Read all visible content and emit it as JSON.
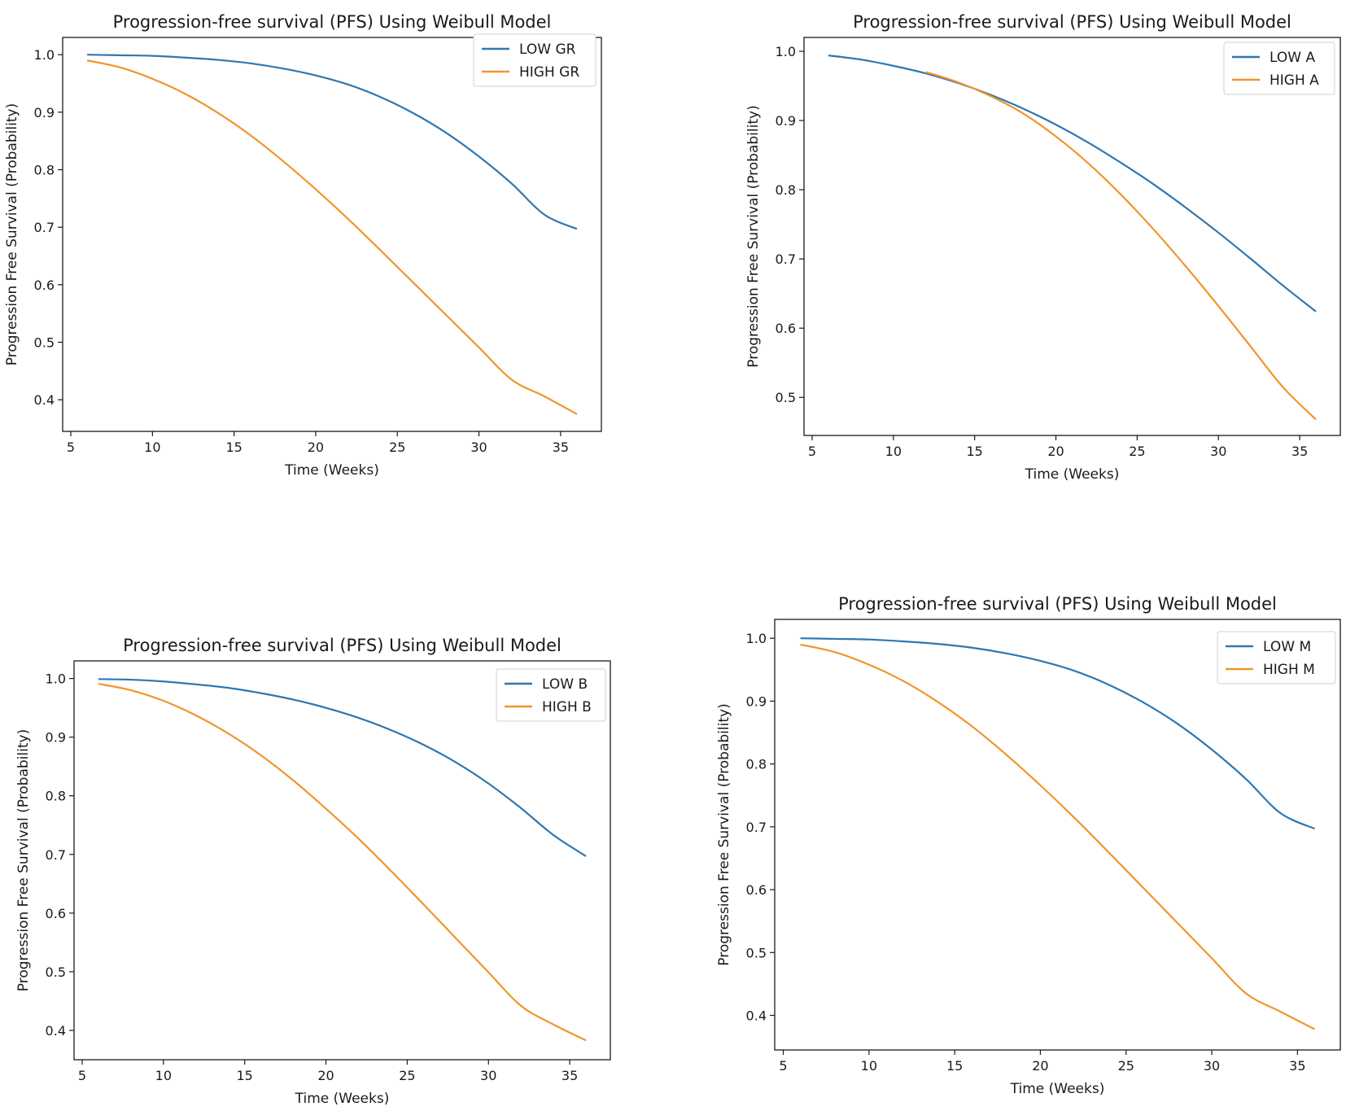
{
  "colors": {
    "low": "#2f77b0",
    "high": "#f0952c",
    "axis": "#1a1a1a"
  },
  "chart_data": [
    {
      "type": "line",
      "title": "Progression-free survival (PFS) Using Weibull Model",
      "xlabel": "Time (Weeks)",
      "ylabel": "Progression Free Survival (Probability)",
      "xlim": [
        4.5,
        37.5
      ],
      "ylim": [
        0.345,
        1.03
      ],
      "xticks": [
        5,
        10,
        15,
        20,
        25,
        30,
        35
      ],
      "yticks": [
        0.4,
        0.5,
        0.6,
        0.7,
        0.8,
        0.9,
        1.0
      ],
      "legend_position": "top-right",
      "series": [
        {
          "name": "LOW GR",
          "color": "#2f77b0",
          "x": [
            6,
            8,
            10,
            12,
            14,
            16,
            18,
            20,
            22,
            24,
            26,
            28,
            30,
            32,
            34,
            36
          ],
          "y": [
            1.0,
            0.999,
            0.998,
            0.995,
            0.991,
            0.985,
            0.976,
            0.964,
            0.948,
            0.926,
            0.898,
            0.864,
            0.823,
            0.776,
            0.722,
            0.697
          ]
        },
        {
          "name": "HIGH GR",
          "color": "#f0952c",
          "x": [
            6,
            8,
            10,
            12,
            14,
            16,
            18,
            20,
            22,
            24,
            26,
            28,
            30,
            32,
            34,
            36
          ],
          "y": [
            0.99,
            0.978,
            0.958,
            0.932,
            0.899,
            0.86,
            0.815,
            0.766,
            0.714,
            0.659,
            0.603,
            0.547,
            0.491,
            0.435,
            0.406,
            0.375
          ]
        }
      ]
    },
    {
      "type": "line",
      "title": "Progression-free survival (PFS) Using Weibull Model",
      "xlabel": "Time (Weeks)",
      "ylabel": "Progression Free Survival (Probability)",
      "xlim": [
        4.5,
        37.5
      ],
      "ylim": [
        0.445,
        1.02
      ],
      "xticks": [
        5,
        10,
        15,
        20,
        25,
        30,
        35
      ],
      "yticks": [
        0.5,
        0.6,
        0.7,
        0.8,
        0.9,
        1.0
      ],
      "legend_position": "top-right",
      "series": [
        {
          "name": "LOW A",
          "color": "#2f77b0",
          "x": [
            6,
            8,
            10,
            12,
            14,
            16,
            18,
            20,
            22,
            24,
            26,
            28,
            30,
            32,
            34,
            36
          ],
          "y": [
            0.994,
            0.988,
            0.979,
            0.968,
            0.954,
            0.937,
            0.917,
            0.894,
            0.868,
            0.839,
            0.808,
            0.774,
            0.738,
            0.7,
            0.661,
            0.624
          ]
        },
        {
          "name": "HIGH A",
          "color": "#f0952c",
          "x": [
            12,
            14,
            16,
            18,
            20,
            22,
            24,
            26,
            28,
            30,
            32,
            34,
            36
          ],
          "y": [
            0.97,
            0.955,
            0.935,
            0.91,
            0.877,
            0.838,
            0.793,
            0.743,
            0.689,
            0.632,
            0.573,
            0.514,
            0.468
          ]
        }
      ]
    },
    {
      "type": "line",
      "title": "Progression-free survival (PFS) Using Weibull Model",
      "xlabel": "Time (Weeks)",
      "ylabel": "Progression Free Survival (Probability)",
      "xlim": [
        4.5,
        37.5
      ],
      "ylim": [
        0.35,
        1.03
      ],
      "xticks": [
        5,
        10,
        15,
        20,
        25,
        30,
        35
      ],
      "yticks": [
        0.4,
        0.5,
        0.6,
        0.7,
        0.8,
        0.9,
        1.0
      ],
      "legend_position": "top-right",
      "series": [
        {
          "name": "LOW B",
          "color": "#2f77b0",
          "x": [
            6,
            8,
            10,
            12,
            14,
            16,
            18,
            20,
            22,
            24,
            26,
            28,
            30,
            32,
            34,
            36
          ],
          "y": [
            0.999,
            0.998,
            0.995,
            0.99,
            0.984,
            0.975,
            0.964,
            0.95,
            0.933,
            0.912,
            0.887,
            0.857,
            0.821,
            0.779,
            0.733,
            0.697
          ]
        },
        {
          "name": "HIGH B",
          "color": "#f0952c",
          "x": [
            6,
            8,
            10,
            12,
            14,
            16,
            18,
            20,
            22,
            24,
            26,
            28,
            30,
            32,
            34,
            36
          ],
          "y": [
            0.991,
            0.98,
            0.962,
            0.937,
            0.906,
            0.869,
            0.826,
            0.778,
            0.727,
            0.672,
            0.615,
            0.557,
            0.499,
            0.442,
            0.41,
            0.383
          ]
        }
      ]
    },
    {
      "type": "line",
      "title": "Progression-free survival (PFS) Using Weibull Model",
      "xlabel": "Time (Weeks)",
      "ylabel": "Progression Free Survival (Probability)",
      "xlim": [
        4.5,
        37.5
      ],
      "ylim": [
        0.345,
        1.03
      ],
      "xticks": [
        5,
        10,
        15,
        20,
        25,
        30,
        35
      ],
      "yticks": [
        0.4,
        0.5,
        0.6,
        0.7,
        0.8,
        0.9,
        1.0
      ],
      "legend_position": "top-right",
      "series": [
        {
          "name": "LOW M",
          "color": "#2f77b0",
          "x": [
            6,
            8,
            10,
            12,
            14,
            16,
            18,
            20,
            22,
            24,
            26,
            28,
            30,
            32,
            34,
            36
          ],
          "y": [
            1.0,
            0.999,
            0.998,
            0.995,
            0.991,
            0.985,
            0.976,
            0.964,
            0.948,
            0.926,
            0.898,
            0.864,
            0.823,
            0.776,
            0.722,
            0.697
          ]
        },
        {
          "name": "HIGH M",
          "color": "#f0952c",
          "x": [
            6,
            8,
            10,
            12,
            14,
            16,
            18,
            20,
            22,
            24,
            26,
            28,
            30,
            32,
            34,
            36
          ],
          "y": [
            0.99,
            0.978,
            0.958,
            0.932,
            0.899,
            0.86,
            0.815,
            0.766,
            0.714,
            0.659,
            0.603,
            0.547,
            0.491,
            0.435,
            0.406,
            0.378
          ]
        }
      ]
    }
  ]
}
